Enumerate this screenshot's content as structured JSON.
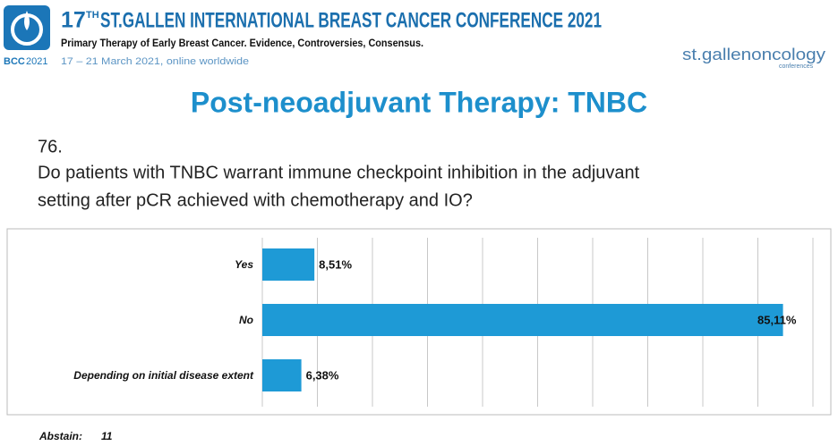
{
  "header": {
    "logo_name": "BCC",
    "logo_year": "2021",
    "edition": "17",
    "edition_suffix": "TH",
    "conference": "ST.GALLEN INTERNATIONAL BREAST CANCER CONFERENCE 2021",
    "subtitle": "Primary Therapy of Early Breast Cancer. Evidence, Controversies, Consensus.",
    "dates": "17 – 21 March 2021, online worldwide",
    "brand": "st.gallenoncology",
    "brand_sub": "conferences"
  },
  "slide": {
    "title": "Post-neoadjuvant Therapy: TNBC",
    "number": "76.",
    "question": [
      "Do patients with TNBC warrant immune checkpoint inhibition in the adjuvant",
      "setting after pCR achieved with chemotherapy and IO?"
    ],
    "abstain_label": "Abstain:",
    "abstain_value": 11
  },
  "chart_data": {
    "type": "hbar",
    "categories": [
      "Yes",
      "No",
      "Depending on initial disease extent"
    ],
    "values": [
      8.51,
      85.11,
      6.38
    ],
    "value_labels": [
      "8,51%",
      "85,11%",
      "6,38%"
    ],
    "color": "#1e9ad6",
    "xlim": [
      0,
      90
    ],
    "xticks": [
      0,
      9,
      18,
      27,
      36,
      45,
      54,
      63,
      72,
      81,
      90
    ],
    "grid": true
  }
}
